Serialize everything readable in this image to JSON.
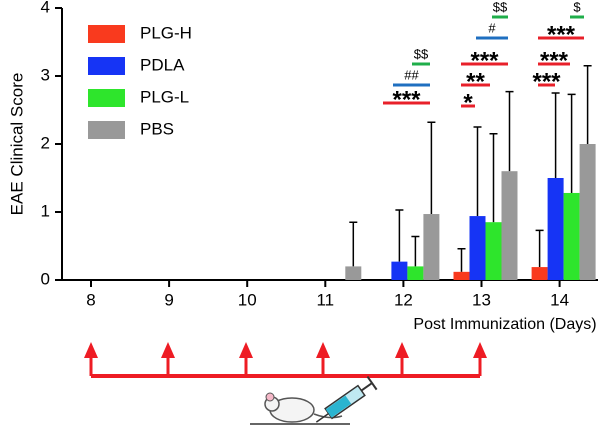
{
  "chart_data": {
    "type": "bar",
    "y_label": "EAE Clinical Score",
    "x_label": "Post Immunization (Days)",
    "categories": [
      "8",
      "9",
      "10",
      "11",
      "12",
      "13",
      "14"
    ],
    "series": [
      {
        "name": "PLG-H",
        "color": "#f93a1e",
        "values": [
          0,
          0,
          0,
          0,
          0,
          0.12,
          0.19
        ],
        "errors": [
          null,
          null,
          null,
          null,
          null,
          0.34,
          0.54
        ]
      },
      {
        "name": "PDLA",
        "color": "#1634f5",
        "values": [
          0,
          0,
          0,
          0,
          0.27,
          0.94,
          1.5
        ],
        "errors": [
          null,
          null,
          null,
          null,
          0.76,
          1.31,
          1.25
        ]
      },
      {
        "name": "PLG-L",
        "color": "#2ee52c",
        "values": [
          0,
          0,
          0,
          0,
          0.2,
          0.85,
          1.28
        ],
        "errors": [
          null,
          null,
          null,
          null,
          0.44,
          1.3,
          1.45
        ]
      },
      {
        "name": "PBS",
        "color": "#999999",
        "values": [
          0,
          0,
          0,
          0.2,
          0.97,
          1.6,
          2.0
        ],
        "errors": [
          null,
          null,
          null,
          0.65,
          1.35,
          1.17,
          1.15
        ]
      }
    ],
    "ylim": [
      0,
      4
    ],
    "yticks": [
      0,
      1,
      2,
      3,
      4
    ],
    "annotations": [
      {
        "text": "***",
        "color": "#e8202a"
      },
      {
        "text": "##",
        "color": "#1f6fc0"
      },
      {
        "text": "$$",
        "color": "#1fae4a"
      },
      {
        "text": "*",
        "color": "#e8202a"
      },
      {
        "text": "**",
        "color": "#e8202a"
      },
      {
        "text": "***",
        "color": "#e8202a"
      },
      {
        "text": "#",
        "color": "#1f6fc0"
      },
      {
        "text": "$$",
        "color": "#1fae4a"
      },
      {
        "text": "***",
        "color": "#e8202a"
      },
      {
        "text": "***",
        "color": "#e8202a"
      },
      {
        "text": "***",
        "color": "#e8202a"
      },
      {
        "text": "$",
        "color": "#1fae4a"
      }
    ]
  }
}
